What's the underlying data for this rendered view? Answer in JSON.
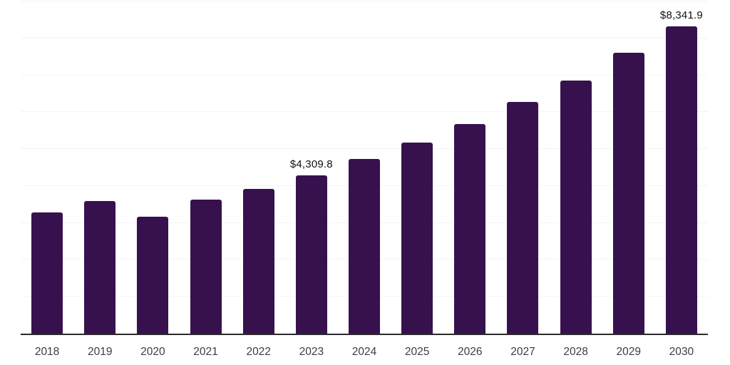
{
  "chart_data": {
    "type": "bar",
    "title": "",
    "xlabel": "",
    "ylabel": "",
    "categories": [
      "2018",
      "2019",
      "2020",
      "2021",
      "2022",
      "2023",
      "2024",
      "2025",
      "2026",
      "2027",
      "2028",
      "2029",
      "2030"
    ],
    "values": [
      3310,
      3610,
      3180,
      3650,
      3940,
      4309.8,
      4750,
      5200,
      5700,
      6300,
      6880,
      7630,
      8341.9
    ],
    "data_labels": {
      "2023": "$4,309.8",
      "2030": "$8,341.9"
    },
    "ylim": [
      0,
      9000
    ],
    "gridline_interval": 1000,
    "grid": true,
    "legend": false,
    "colors": {
      "bar": "#37114E",
      "axis_line": "#2B2B2B",
      "gridline": "#F4F4F4",
      "data_label": "#111111",
      "tick_label": "#3D3D3D",
      "background": "#FFFFFF"
    }
  }
}
